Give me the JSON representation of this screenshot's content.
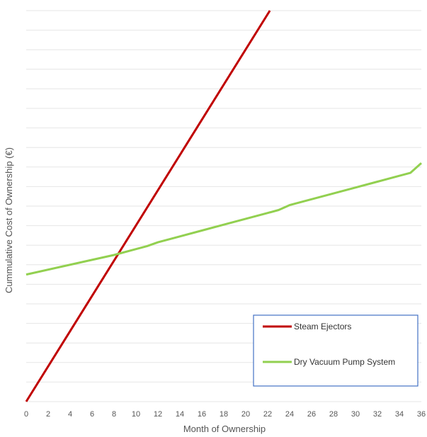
{
  "chart_data": {
    "type": "line",
    "title": "",
    "xlabel": "Month of Ownership",
    "ylabel": "Cummulative Cost of Ownership (€)",
    "xlim": [
      0,
      36
    ],
    "ylim": [
      0,
      20
    ],
    "x_ticks": [
      "0",
      "2",
      "4",
      "6",
      "8",
      "10",
      "12",
      "14",
      "16",
      "18",
      "20",
      "22",
      "24",
      "26",
      "28",
      "30",
      "32",
      "34",
      "36"
    ],
    "grid": "horizontal",
    "legend_position": "bottom-right",
    "series": [
      {
        "name": "Steam Ejectors",
        "color": "#c00000",
        "x": [
          0,
          22.2
        ],
        "y": [
          0,
          20
        ]
      },
      {
        "name": "Dry Vacuum Pump System",
        "color": "#92d050",
        "x": [
          0,
          6,
          8,
          10,
          11,
          12,
          14,
          16,
          18,
          20,
          22,
          23,
          24,
          26,
          28,
          30,
          32,
          34,
          35,
          36
        ],
        "y": [
          6.5,
          7.25,
          7.5,
          7.8,
          7.95,
          8.15,
          8.45,
          8.75,
          9.05,
          9.35,
          9.65,
          9.8,
          10.05,
          10.35,
          10.65,
          10.95,
          11.25,
          11.55,
          11.7,
          12.2
        ]
      }
    ]
  }
}
